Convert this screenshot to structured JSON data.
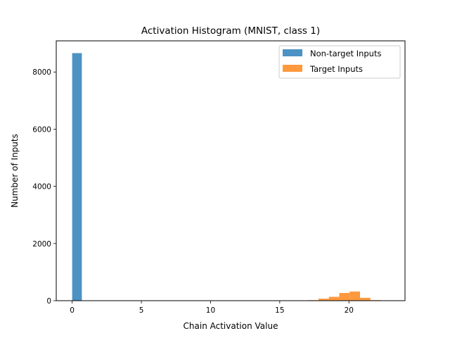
{
  "chart_data": {
    "type": "bar",
    "title": "Activation Histogram (MNIST, class 1)",
    "xlabel": "Chain Activation Value",
    "ylabel": "Number of Inputs",
    "xlim": [
      -1.15,
      24.05
    ],
    "ylim": [
      0,
      9090
    ],
    "xticks": [
      0,
      5,
      10,
      15,
      20
    ],
    "yticks": [
      0,
      2000,
      4000,
      6000,
      8000
    ],
    "grid": false,
    "legend_position": "top-right",
    "series": [
      {
        "name": "Non-target Inputs",
        "color": "#1f77b4",
        "opacity": 0.8,
        "bins": [
          {
            "x0": 0.0,
            "x1": 0.7,
            "count": 8660
          },
          {
            "x0": 0.7,
            "x1": 1.4,
            "count": 10
          },
          {
            "x0": 1.4,
            "x1": 2.1,
            "count": 8
          },
          {
            "x0": 2.1,
            "x1": 2.8,
            "count": 6
          },
          {
            "x0": 2.8,
            "x1": 3.5,
            "count": 5
          }
        ]
      },
      {
        "name": "Target Inputs",
        "color": "#ff7f0e",
        "opacity": 0.8,
        "bins": [
          {
            "x0": 16.3,
            "x1": 17.05,
            "count": 5
          },
          {
            "x0": 17.05,
            "x1": 17.8,
            "count": 18
          },
          {
            "x0": 17.8,
            "x1": 18.55,
            "count": 70
          },
          {
            "x0": 18.55,
            "x1": 19.3,
            "count": 135
          },
          {
            "x0": 19.3,
            "x1": 20.05,
            "count": 270
          },
          {
            "x0": 20.05,
            "x1": 20.8,
            "count": 320
          },
          {
            "x0": 20.8,
            "x1": 21.55,
            "count": 100
          },
          {
            "x0": 21.55,
            "x1": 22.3,
            "count": 20
          },
          {
            "x0": 22.3,
            "x1": 23.05,
            "count": 3
          }
        ]
      }
    ]
  }
}
